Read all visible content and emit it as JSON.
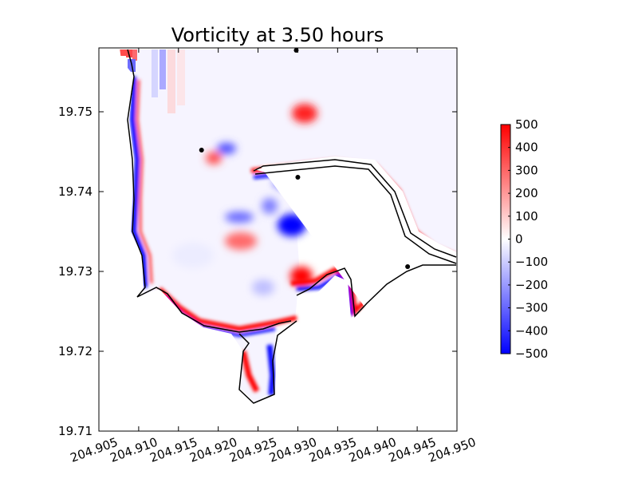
{
  "chart_data": {
    "type": "heatmap",
    "title": "Vorticity at 3.50 hours",
    "xlabel": "",
    "ylabel": "",
    "xlim": [
      204.905,
      204.95
    ],
    "ylim": [
      19.71,
      19.758
    ],
    "x_ticks": [
      "204.905",
      "204.910",
      "204.915",
      "204.920",
      "204.925",
      "204.930",
      "204.935",
      "204.940",
      "204.945",
      "204.950"
    ],
    "x_tick_values": [
      204.905,
      204.91,
      204.915,
      204.92,
      204.925,
      204.93,
      204.935,
      204.94,
      204.945,
      204.95
    ],
    "y_ticks": [
      "19.71",
      "19.72",
      "19.73",
      "19.74",
      "19.75"
    ],
    "y_tick_values": [
      19.71,
      19.72,
      19.73,
      19.74,
      19.75
    ],
    "colorbar": {
      "min": -500,
      "max": 500,
      "colormap": "bwr",
      "ticks": [
        "500",
        "400",
        "300",
        "200",
        "100",
        "0",
        "−100",
        "−200",
        "−300",
        "−400",
        "−500"
      ],
      "tick_values": [
        500,
        400,
        300,
        200,
        100,
        0,
        -100,
        -200,
        -300,
        -400,
        -500
      ]
    },
    "gauges": [
      {
        "x": 204.9298,
        "y": 19.7577
      },
      {
        "x": 204.9179,
        "y": 19.7452
      },
      {
        "x": 204.93,
        "y": 19.7418
      },
      {
        "x": 204.9438,
        "y": 19.7306
      }
    ],
    "colors": {
      "positive": "#ff0000",
      "negative": "#0000ff",
      "zero": "#ffffff",
      "shoreline": "#000000"
    }
  }
}
